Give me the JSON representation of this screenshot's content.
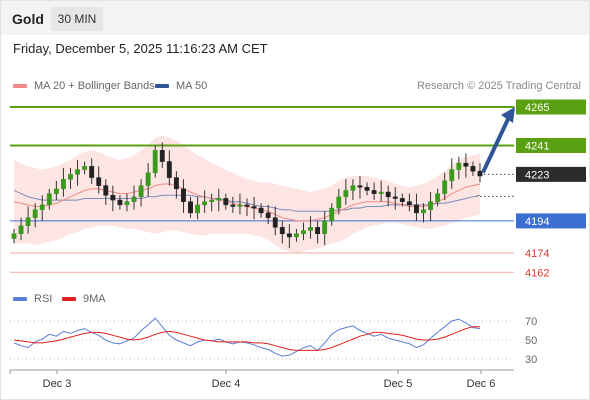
{
  "header": {
    "asset": "Gold",
    "timeframe": "30 MIN"
  },
  "datetime": "Friday, December 5, 2025 11:16:23 AM CET",
  "legend": {
    "items": [
      {
        "label": "MA 20 + Bollinger Bands",
        "color": "#f28a85"
      },
      {
        "label": "MA 50",
        "color": "#2f5597"
      }
    ],
    "credit": "Research © 2025 Trading Central"
  },
  "rsi_legend": {
    "items": [
      {
        "label": "RSI",
        "color": "#5b7fd6"
      },
      {
        "label": "9MA",
        "color": "#e02020"
      }
    ]
  },
  "chart_data": [
    {
      "type": "candlestick",
      "title": "Gold 30 MIN",
      "x_ticks": [
        "Dec 3",
        "Dec 4",
        "Dec 5",
        "Dec 6"
      ],
      "ylim": [
        4150,
        4275
      ],
      "levels": [
        {
          "value": 4265,
          "label": "4265",
          "style": "resistance",
          "color": "#5aa012"
        },
        {
          "value": 4241,
          "label": "4241",
          "style": "resistance",
          "color": "#5aa012"
        },
        {
          "value": 4223,
          "label": "4223",
          "style": "current",
          "color": "#2b2b2b"
        },
        {
          "value": 4194,
          "label": "4194",
          "style": "pivot",
          "color": "#3d6fd1"
        },
        {
          "value": 4174,
          "label": "4174",
          "style": "support",
          "color": "#d9372f"
        },
        {
          "value": 4162,
          "label": "4162",
          "style": "support",
          "color": "#d9372f"
        }
      ],
      "close": [
        4186,
        4191,
        4196,
        4201,
        4204,
        4211,
        4214,
        4220,
        4223,
        4226,
        4228,
        4221,
        4216,
        4210,
        4207,
        4204,
        4206,
        4209,
        4216,
        4224,
        4238,
        4231,
        4221,
        4214,
        4206,
        4199,
        4204,
        4206,
        4207,
        4208,
        4204,
        4203,
        4204,
        4203,
        4202,
        4199,
        4196,
        4190,
        4186,
        4184,
        4186,
        4188,
        4190,
        4186,
        4194,
        4202,
        4209,
        4213,
        4216,
        4215,
        4213,
        4211,
        4212,
        4209,
        4208,
        4206,
        4204,
        4199,
        4201,
        4206,
        4211,
        4219,
        4226,
        4230,
        4228,
        4225,
        4222
      ],
      "ma20": [
        4206,
        4205,
        4204,
        4203,
        4203,
        4204,
        4205,
        4207,
        4209,
        4211,
        4213,
        4214,
        4214,
        4213,
        4212,
        4211,
        4211,
        4212,
        4213,
        4214,
        4216,
        4217,
        4217,
        4216,
        4214,
        4212,
        4210,
        4209,
        4208,
        4207,
        4206,
        4205,
        4204,
        4203,
        4202,
        4201,
        4200,
        4198,
        4196,
        4195,
        4194,
        4194,
        4194,
        4195,
        4196,
        4198,
        4200,
        4202,
        4204,
        4205,
        4206,
        4206,
        4206,
        4206,
        4205,
        4204,
        4203,
        4203,
        4203,
        4204,
        4206,
        4208,
        4211,
        4213,
        4215,
        4216,
        4217
      ],
      "ma50": [
        4213,
        4211,
        4209,
        4208,
        4207,
        4207,
        4207,
        4207,
        4207,
        4207,
        4208,
        4208,
        4208,
        4208,
        4208,
        4208,
        4208,
        4208,
        4208,
        4209,
        4209,
        4210,
        4210,
        4210,
        4210,
        4210,
        4209,
        4209,
        4208,
        4208,
        4207,
        4206,
        4206,
        4205,
        4204,
        4203,
        4203,
        4202,
        4201,
        4201,
        4200,
        4200,
        4200,
        4200,
        4200,
        4200,
        4201,
        4201,
        4202,
        4202,
        4203,
        4203,
        4203,
        4204,
        4204,
        4204,
        4204,
        4204,
        4204,
        4204,
        4205,
        4205,
        4206,
        4207,
        4208,
        4209,
        4210
      ],
      "bb_width": [
        26,
        25,
        24,
        24,
        23,
        23,
        23,
        23,
        23,
        24,
        24,
        24,
        23,
        22,
        21,
        21,
        22,
        23,
        25,
        27,
        30,
        30,
        29,
        28,
        27,
        26,
        25,
        24,
        22,
        21,
        20,
        19,
        18,
        17,
        17,
        17,
        18,
        19,
        20,
        20,
        20,
        19,
        18,
        18,
        18,
        18,
        19,
        19,
        18,
        17,
        16,
        15,
        14,
        13,
        12,
        12,
        12,
        13,
        14,
        15,
        16,
        17,
        18,
        19,
        19,
        19,
        19
      ],
      "projection": {
        "from": 4223,
        "to": 4265
      }
    },
    {
      "type": "line",
      "title": "RSI",
      "yticks": [
        70,
        50,
        30
      ],
      "ylim": [
        20,
        80
      ],
      "series": [
        {
          "name": "RSI",
          "values": [
            47,
            44,
            42,
            48,
            51,
            56,
            54,
            59,
            57,
            60,
            62,
            58,
            55,
            50,
            47,
            46,
            49,
            52,
            60,
            66,
            73,
            64,
            55,
            50,
            47,
            44,
            48,
            50,
            49,
            51,
            48,
            46,
            48,
            47,
            45,
            42,
            40,
            36,
            33,
            34,
            38,
            42,
            44,
            39,
            47,
            56,
            61,
            63,
            65,
            60,
            57,
            54,
            56,
            52,
            50,
            48,
            46,
            42,
            45,
            52,
            58,
            64,
            70,
            72,
            68,
            63,
            62
          ]
        },
        {
          "name": "9MA",
          "values": [
            50,
            49,
            48,
            47,
            47,
            48,
            49,
            51,
            53,
            55,
            57,
            58,
            58,
            57,
            55,
            53,
            51,
            50,
            51,
            53,
            56,
            58,
            59,
            58,
            56,
            54,
            52,
            50,
            49,
            48,
            48,
            48,
            48,
            48,
            47,
            47,
            46,
            44,
            42,
            40,
            39,
            39,
            39,
            39,
            40,
            42,
            45,
            48,
            51,
            54,
            56,
            58,
            58,
            57,
            56,
            55,
            53,
            51,
            50,
            50,
            51,
            53,
            56,
            59,
            62,
            64,
            64
          ]
        }
      ]
    }
  ]
}
